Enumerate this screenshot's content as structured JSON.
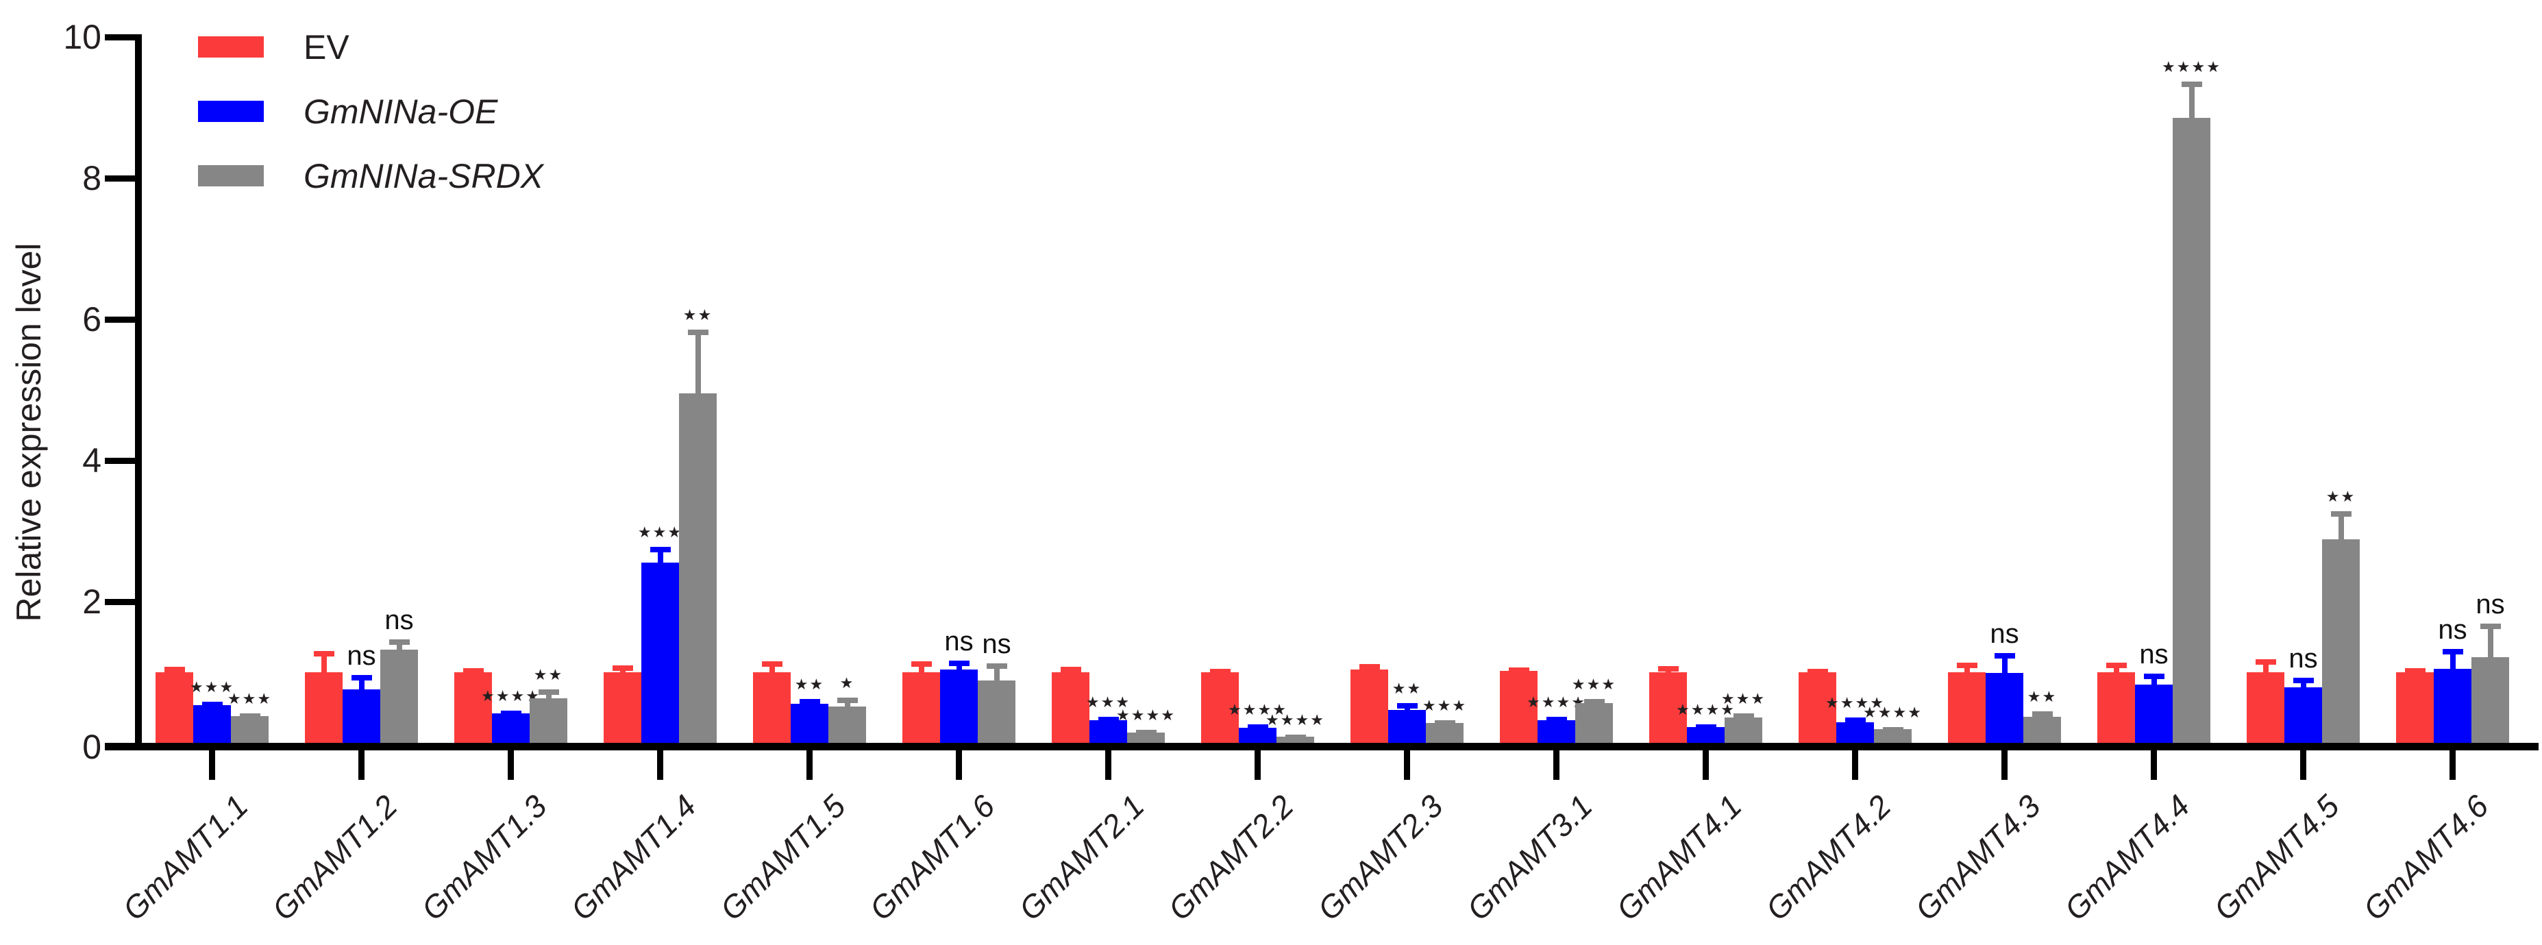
{
  "chart_data": {
    "type": "bar",
    "title": "",
    "xlabel": "",
    "ylabel": "Relative expression level",
    "ylim": [
      0,
      10
    ],
    "yticks": [
      0,
      2,
      4,
      6,
      8,
      10
    ],
    "grid": false,
    "legend_position": "top-left",
    "categories": [
      "GmAMT1.1",
      "GmAMT1.2",
      "GmAMT1.3",
      "GmAMT1.4",
      "GmAMT1.5",
      "GmAMT1.6",
      "GmAMT2.1",
      "GmAMT2.2",
      "GmAMT2.3",
      "GmAMT3.1",
      "GmAMT4.1",
      "GmAMT4.2",
      "GmAMT4.3",
      "GmAMT4.4",
      "GmAMT4.5",
      "GmAMT4.6"
    ],
    "series": [
      {
        "name": "EV",
        "color": "#FB3B3B",
        "italic": false,
        "values": [
          1.0,
          1.0,
          1.0,
          1.0,
          1.0,
          1.0,
          1.0,
          1.0,
          1.04,
          1.02,
          1.0,
          1.0,
          1.0,
          1.0,
          1.0,
          1.0
        ],
        "errors": [
          0.08,
          0.3,
          0.06,
          0.1,
          0.16,
          0.16,
          0.08,
          0.05,
          0.08,
          0.05,
          0.09,
          0.05,
          0.14,
          0.14,
          0.18,
          0.06
        ],
        "sig": null
      },
      {
        "name": "GmNINa-OE",
        "color": "#0000FD",
        "italic": true,
        "values": [
          0.53,
          0.76,
          0.42,
          2.55,
          0.55,
          1.04,
          0.32,
          0.21,
          0.47,
          0.32,
          0.22,
          0.29,
          0.99,
          0.83,
          0.79,
          1.05
        ],
        "errors": [
          0.05,
          0.2,
          0.04,
          0.23,
          0.07,
          0.13,
          0.05,
          0.05,
          0.09,
          0.05,
          0.04,
          0.07,
          0.28,
          0.15,
          0.13,
          0.28
        ],
        "sig": [
          "***",
          "ns",
          "****",
          "***",
          "**",
          "ns",
          "***",
          "****",
          "**",
          "****",
          "****",
          "****",
          "ns",
          "ns",
          "ns",
          "ns"
        ]
      },
      {
        "name": "GmNINa-SRDX",
        "color": "#868686",
        "italic": true,
        "values": [
          0.38,
          1.32,
          0.63,
          4.95,
          0.51,
          0.88,
          0.15,
          0.09,
          0.28,
          0.56,
          0.36,
          0.19,
          0.37,
          8.85,
          2.88,
          1.21
        ],
        "errors": [
          0.04,
          0.15,
          0.13,
          0.9,
          0.13,
          0.25,
          0.03,
          0.03,
          0.04,
          0.06,
          0.06,
          0.03,
          0.08,
          0.52,
          0.4,
          0.48
        ],
        "sig": [
          "***",
          "ns",
          "**",
          "**",
          "*",
          "ns",
          "****",
          "****",
          "***",
          "***",
          "***",
          "****",
          "**",
          "****",
          "**",
          "ns"
        ]
      }
    ]
  }
}
